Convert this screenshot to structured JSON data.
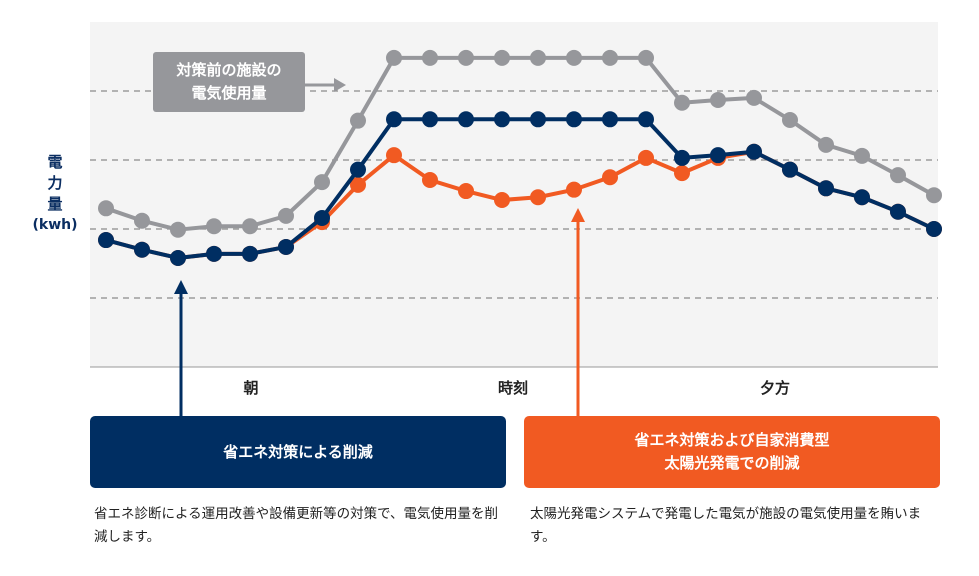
{
  "chart_data": {
    "type": "line",
    "title": "",
    "ylabel": "電力量",
    "yunit": "(kwh)",
    "xlabel": "",
    "categories": [
      "朝",
      "時刻",
      "夕方"
    ],
    "x": [
      0,
      1,
      2,
      3,
      4,
      5,
      6,
      7,
      8,
      9,
      10,
      11,
      12,
      13,
      14,
      15,
      16,
      17,
      18,
      19,
      20,
      21,
      22,
      23
    ],
    "ylim": [
      0,
      5
    ],
    "grid": "horizontal dashed",
    "series": [
      {
        "name": "対策前の施設の電気使用量",
        "color": "#96979b",
        "values": [
          2.3,
          2.12,
          1.99,
          2.04,
          2.04,
          2.19,
          2.68,
          3.57,
          4.48,
          4.48,
          4.48,
          4.48,
          4.48,
          4.48,
          4.48,
          4.48,
          3.83,
          3.87,
          3.9,
          3.58,
          3.22,
          3.06,
          2.78,
          2.49
        ]
      },
      {
        "name": "省エネ対策および自家消費型太陽光発電での削減",
        "color": "#f15a22",
        "values": [
          1.84,
          1.7,
          1.58,
          1.64,
          1.64,
          1.74,
          2.1,
          2.64,
          3.07,
          2.71,
          2.55,
          2.42,
          2.46,
          2.57,
          2.75,
          3.03,
          2.81,
          3.03,
          3.12,
          2.86,
          2.59,
          2.46,
          2.25,
          2.0
        ]
      },
      {
        "name": "省エネ対策による削減",
        "color": "#002e62",
        "values": [
          1.84,
          1.7,
          1.58,
          1.64,
          1.64,
          1.74,
          2.16,
          2.86,
          3.59,
          3.59,
          3.59,
          3.59,
          3.59,
          3.59,
          3.59,
          3.59,
          3.03,
          3.07,
          3.12,
          2.86,
          2.59,
          2.46,
          2.25,
          2.0
        ]
      }
    ]
  },
  "callout": {
    "line1": "対策前の施設の",
    "line2": "電気使用量"
  },
  "axis": {
    "y_line1": "電",
    "y_line2": "力",
    "y_line3": "量",
    "y_unit": "(kwh)"
  },
  "boxes": {
    "navy": {
      "title": "省エネ対策による削減",
      "desc": "省エネ診断による運用改善や設備更新等の対策で、電気使用量を削減します。",
      "color": "#002e62"
    },
    "orange": {
      "title_line1": "省エネ対策および自家消費型",
      "title_line2": "太陽光発電での削減",
      "desc": "太陽光発電システムで発電した電気が施設の電気使用量を賄います。",
      "color": "#f15a22"
    }
  }
}
